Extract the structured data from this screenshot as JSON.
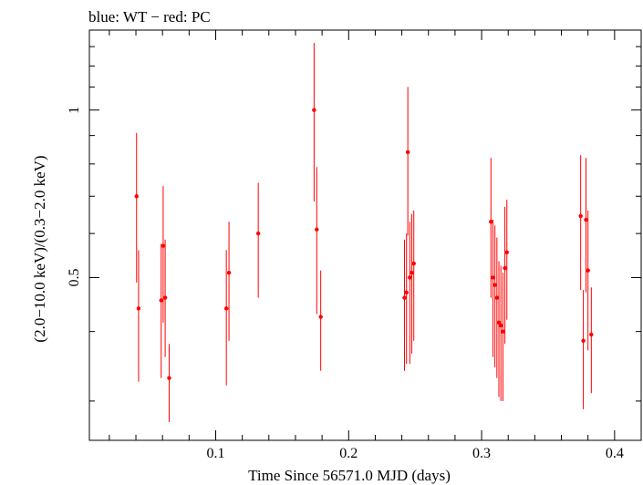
{
  "chart_data": {
    "type": "scatter",
    "title": "blue: WT − red: PC",
    "xlabel": "Time Since 56571.0 MJD (days)",
    "ylabel": "(2.0−10.0 keV)/(0.3−2.0 keV)",
    "xlim": [
      0.005,
      0.42
    ],
    "ylim": [
      0.255,
      1.392
    ],
    "yscale": "log",
    "x_ticks": [
      {
        "value": 0.1,
        "label": "0.1"
      },
      {
        "value": 0.2,
        "label": "0.2"
      },
      {
        "value": 0.3,
        "label": "0.3"
      },
      {
        "value": 0.4,
        "label": "0.4"
      }
    ],
    "y_ticks": [
      {
        "value": 0.5,
        "label": "0.5"
      },
      {
        "value": 1.0,
        "label": "1"
      }
    ],
    "series": [
      {
        "name": "PC",
        "color": "#ff0000",
        "points": [
          {
            "x": 0.0405,
            "y": 0.7,
            "ylo": 0.49,
            "yhi": 0.91
          },
          {
            "x": 0.042,
            "y": 0.44,
            "ylo": 0.325,
            "yhi": 0.56
          },
          {
            "x": 0.059,
            "y": 0.455,
            "ylo": 0.33,
            "yhi": 0.575
          },
          {
            "x": 0.0605,
            "y": 0.57,
            "ylo": 0.415,
            "yhi": 0.73
          },
          {
            "x": 0.062,
            "y": 0.46,
            "ylo": 0.36,
            "yhi": 0.585
          },
          {
            "x": 0.065,
            "y": 0.33,
            "ylo": 0.275,
            "yhi": 0.38
          },
          {
            "x": 0.108,
            "y": 0.44,
            "ylo": 0.32,
            "yhi": 0.56
          },
          {
            "x": 0.11,
            "y": 0.51,
            "ylo": 0.385,
            "yhi": 0.63
          },
          {
            "x": 0.132,
            "y": 0.6,
            "ylo": 0.46,
            "yhi": 0.74
          },
          {
            "x": 0.174,
            "y": 1.0,
            "ylo": 0.685,
            "yhi": 1.32
          },
          {
            "x": 0.176,
            "y": 0.61,
            "ylo": 0.43,
            "yhi": 0.79
          },
          {
            "x": 0.179,
            "y": 0.425,
            "ylo": 0.34,
            "yhi": 0.515
          },
          {
            "x": 0.242,
            "y": 0.46,
            "ylo": 0.34,
            "yhi": 0.585
          },
          {
            "x": 0.2435,
            "y": 0.47,
            "ylo": 0.35,
            "yhi": 0.6
          },
          {
            "x": 0.2445,
            "y": 0.84,
            "ylo": 0.595,
            "yhi": 1.1
          },
          {
            "x": 0.246,
            "y": 0.5,
            "ylo": 0.35,
            "yhi": 0.63
          },
          {
            "x": 0.2475,
            "y": 0.51,
            "ylo": 0.365,
            "yhi": 0.65
          },
          {
            "x": 0.249,
            "y": 0.53,
            "ylo": 0.385,
            "yhi": 0.66
          },
          {
            "x": 0.307,
            "y": 0.63,
            "ylo": 0.46,
            "yhi": 0.82
          },
          {
            "x": 0.3085,
            "y": 0.5,
            "ylo": 0.36,
            "yhi": 0.635
          },
          {
            "x": 0.31,
            "y": 0.485,
            "ylo": 0.345,
            "yhi": 0.62
          },
          {
            "x": 0.3115,
            "y": 0.46,
            "ylo": 0.33,
            "yhi": 0.59
          },
          {
            "x": 0.313,
            "y": 0.415,
            "ylo": 0.305,
            "yhi": 0.535
          },
          {
            "x": 0.3145,
            "y": 0.41,
            "ylo": 0.3,
            "yhi": 0.525
          },
          {
            "x": 0.316,
            "y": 0.4,
            "ylo": 0.3,
            "yhi": 0.51
          },
          {
            "x": 0.3175,
            "y": 0.52,
            "ylo": 0.38,
            "yhi": 0.67
          },
          {
            "x": 0.319,
            "y": 0.555,
            "ylo": 0.42,
            "yhi": 0.69
          },
          {
            "x": 0.3745,
            "y": 0.645,
            "ylo": 0.475,
            "yhi": 0.83
          },
          {
            "x": 0.3765,
            "y": 0.385,
            "ylo": 0.29,
            "yhi": 0.475
          },
          {
            "x": 0.3785,
            "y": 0.635,
            "ylo": 0.47,
            "yhi": 0.82
          },
          {
            "x": 0.38,
            "y": 0.515,
            "ylo": 0.37,
            "yhi": 0.66
          },
          {
            "x": 0.3825,
            "y": 0.395,
            "ylo": 0.31,
            "yhi": 0.48
          }
        ]
      }
    ]
  }
}
